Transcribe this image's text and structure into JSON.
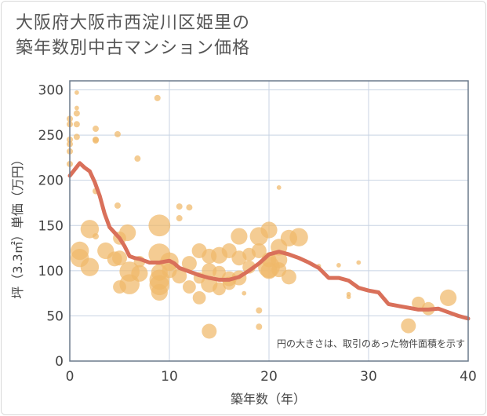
{
  "title_line1": "大阪府大阪市西淀川区姫里の",
  "title_line2": "築年数別中古マンション価格",
  "colors": {
    "bubble": "#f0b86a",
    "line": "#d9705a",
    "grid": "#c8d3e3",
    "frame": "#6b7a8c"
  },
  "chart_data": {
    "type": "scatter",
    "title": "大阪府大阪市西淀川区姫里の築年数別中古マンション価格",
    "xlabel": "築年数（年）",
    "ylabel": "坪（3.3㎡）単価（万円）",
    "xlim": [
      0,
      40
    ],
    "ylim": [
      0,
      310
    ],
    "xticks": [
      0,
      10,
      20,
      30,
      40
    ],
    "yticks": [
      0,
      50,
      100,
      150,
      200,
      250,
      300
    ],
    "grid": true,
    "note": "円の大きさは、取引のあった物件面積を示す",
    "series": [
      {
        "type": "bubble",
        "points": [
          {
            "x": 0,
            "y": 268,
            "size": 2
          },
          {
            "x": 0,
            "y": 262,
            "size": 2
          },
          {
            "x": 0,
            "y": 245,
            "size": 2
          },
          {
            "x": 0,
            "y": 240,
            "size": 2
          },
          {
            "x": 0,
            "y": 232,
            "size": 2
          },
          {
            "x": 0,
            "y": 218,
            "size": 2
          },
          {
            "x": 0.7,
            "y": 297,
            "size": 1
          },
          {
            "x": 0.7,
            "y": 280,
            "size": 1
          },
          {
            "x": 0.7,
            "y": 274,
            "size": 2
          },
          {
            "x": 0.7,
            "y": 262,
            "size": 2
          },
          {
            "x": 0.7,
            "y": 248,
            "size": 2
          },
          {
            "x": 2.6,
            "y": 257,
            "size": 2
          },
          {
            "x": 2.6,
            "y": 245,
            "size": 2
          },
          {
            "x": 2.6,
            "y": 244,
            "size": 2
          },
          {
            "x": 2.6,
            "y": 188,
            "size": 2
          },
          {
            "x": 2.6,
            "y": 138,
            "size": 2
          },
          {
            "x": 4.8,
            "y": 251,
            "size": 2
          },
          {
            "x": 4.8,
            "y": 172,
            "size": 2
          },
          {
            "x": 6.8,
            "y": 224,
            "size": 2
          },
          {
            "x": 8.8,
            "y": 291,
            "size": 2
          },
          {
            "x": 1,
            "y": 122,
            "size": 9
          },
          {
            "x": 1,
            "y": 114,
            "size": 9
          },
          {
            "x": 2,
            "y": 146,
            "size": 9
          },
          {
            "x": 2,
            "y": 104,
            "size": 9
          },
          {
            "x": 3.6,
            "y": 122,
            "size": 8
          },
          {
            "x": 4.5,
            "y": 113,
            "size": 7
          },
          {
            "x": 5,
            "y": 136,
            "size": 6
          },
          {
            "x": 5,
            "y": 114,
            "size": 7
          },
          {
            "x": 5,
            "y": 82,
            "size": 6
          },
          {
            "x": 5.8,
            "y": 142,
            "size": 8
          },
          {
            "x": 6,
            "y": 99,
            "size": 10
          },
          {
            "x": 6,
            "y": 85,
            "size": 10
          },
          {
            "x": 7,
            "y": 97,
            "size": 8
          },
          {
            "x": 7,
            "y": 110,
            "size": 5
          },
          {
            "x": 9,
            "y": 150,
            "size": 11
          },
          {
            "x": 9,
            "y": 118,
            "size": 11
          },
          {
            "x": 9,
            "y": 98,
            "size": 8
          },
          {
            "x": 9,
            "y": 90,
            "size": 10
          },
          {
            "x": 9,
            "y": 84,
            "size": 10
          },
          {
            "x": 9,
            "y": 76,
            "size": 8
          },
          {
            "x": 10,
            "y": 110,
            "size": 9
          },
          {
            "x": 10,
            "y": 100,
            "size": 7
          },
          {
            "x": 11,
            "y": 171,
            "size": 2
          },
          {
            "x": 11,
            "y": 158,
            "size": 2
          },
          {
            "x": 11,
            "y": 94,
            "size": 7
          },
          {
            "x": 12,
            "y": 170,
            "size": 2
          },
          {
            "x": 12,
            "y": 108,
            "size": 7
          },
          {
            "x": 12,
            "y": 82,
            "size": 6
          },
          {
            "x": 13,
            "y": 122,
            "size": 7
          },
          {
            "x": 13,
            "y": 70,
            "size": 6
          },
          {
            "x": 13,
            "y": 92,
            "size": 5
          },
          {
            "x": 14,
            "y": 116,
            "size": 7
          },
          {
            "x": 14,
            "y": 100,
            "size": 7
          },
          {
            "x": 14,
            "y": 85,
            "size": 8
          },
          {
            "x": 14,
            "y": 33,
            "size": 7
          },
          {
            "x": 15,
            "y": 117,
            "size": 8
          },
          {
            "x": 15,
            "y": 98,
            "size": 6
          },
          {
            "x": 15,
            "y": 80,
            "size": 6
          },
          {
            "x": 16,
            "y": 122,
            "size": 7
          },
          {
            "x": 16,
            "y": 91,
            "size": 7
          },
          {
            "x": 16,
            "y": 86,
            "size": 6
          },
          {
            "x": 17,
            "y": 138,
            "size": 8
          },
          {
            "x": 17,
            "y": 114,
            "size": 7
          },
          {
            "x": 17,
            "y": 92,
            "size": 7
          },
          {
            "x": 17.5,
            "y": 75,
            "size": 1
          },
          {
            "x": 18,
            "y": 118,
            "size": 6
          },
          {
            "x": 18,
            "y": 104,
            "size": 6
          },
          {
            "x": 19,
            "y": 138,
            "size": 9
          },
          {
            "x": 19,
            "y": 122,
            "size": 7
          },
          {
            "x": 19,
            "y": 56,
            "size": 2
          },
          {
            "x": 19,
            "y": 38,
            "size": 2
          },
          {
            "x": 20,
            "y": 145,
            "size": 8
          },
          {
            "x": 20,
            "y": 112,
            "size": 7
          },
          {
            "x": 20,
            "y": 104,
            "size": 11
          },
          {
            "x": 20,
            "y": 100,
            "size": 8
          },
          {
            "x": 21,
            "y": 192,
            "size": 1
          },
          {
            "x": 21,
            "y": 126,
            "size": 8
          },
          {
            "x": 21,
            "y": 112,
            "size": 8
          },
          {
            "x": 21,
            "y": 101,
            "size": 7
          },
          {
            "x": 22,
            "y": 136,
            "size": 8
          },
          {
            "x": 22,
            "y": 93,
            "size": 7
          },
          {
            "x": 23,
            "y": 137,
            "size": 9
          },
          {
            "x": 25,
            "y": 105,
            "size": 1
          },
          {
            "x": 27,
            "y": 106,
            "size": 1
          },
          {
            "x": 28,
            "y": 74,
            "size": 1
          },
          {
            "x": 28,
            "y": 71,
            "size": 1
          },
          {
            "x": 29,
            "y": 109,
            "size": 1
          },
          {
            "x": 34,
            "y": 39,
            "size": 7
          },
          {
            "x": 35,
            "y": 64,
            "size": 6
          },
          {
            "x": 36,
            "y": 58,
            "size": 6
          },
          {
            "x": 38,
            "y": 70,
            "size": 8
          }
        ]
      },
      {
        "type": "line",
        "x": [
          0,
          0.5,
          1,
          1.5,
          2,
          2.5,
          3,
          3.5,
          4,
          4.5,
          5,
          5.5,
          6,
          6.5,
          7,
          7.5,
          8,
          8.5,
          9,
          9.5,
          10,
          10.5,
          11,
          12,
          13,
          14,
          15,
          16,
          17,
          18,
          19,
          20,
          21,
          22,
          23,
          24,
          25,
          26,
          27,
          28,
          29,
          30,
          31,
          32,
          33,
          34,
          35,
          36,
          37,
          38,
          39,
          40
        ],
        "y": [
          205,
          212,
          219,
          214,
          210,
          198,
          183,
          163,
          148,
          142,
          136,
          127,
          116,
          114,
          113,
          111,
          109,
          109,
          109,
          110,
          111,
          108,
          103,
          99,
          95,
          92,
          90,
          90,
          93,
          100,
          108,
          118,
          121,
          118,
          114,
          109,
          103,
          92,
          92,
          89,
          81,
          78,
          76,
          63,
          61,
          59,
          57,
          57,
          58,
          54,
          50,
          47
        ]
      }
    ]
  }
}
